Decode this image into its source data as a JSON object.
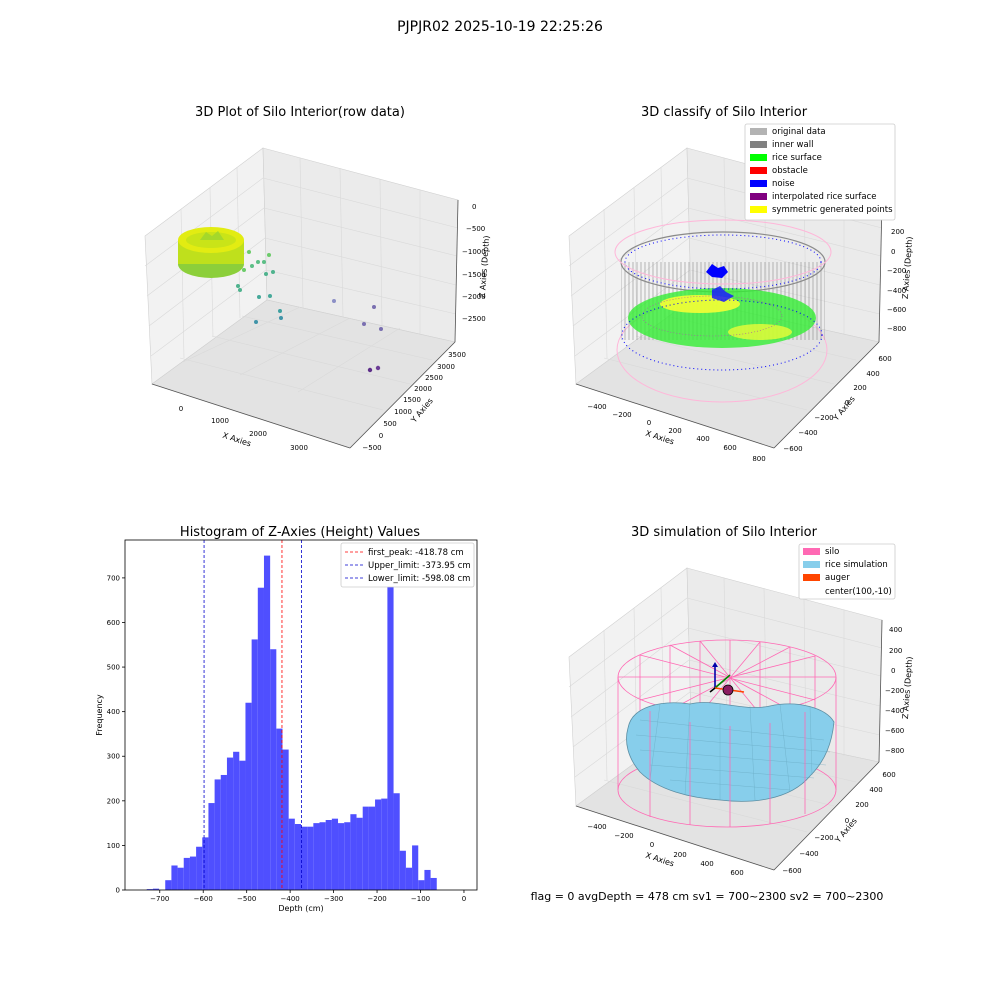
{
  "suptitle": "PJPJR02 2025-10-19 22:25:26",
  "colors": {
    "hist_bar": "#4f4fff",
    "peak_line": "#ff0000",
    "limit_line": "#0000cc",
    "pane": "#f2f2f2",
    "pane_dark": "#e6e6e6"
  },
  "panel_raw": {
    "title": "3D Plot of Silo Interior(row data)",
    "xlabel": "X Axies",
    "ylabel": "Y Axies",
    "zlabel": "Z Axies (Depth)",
    "x_ticks": [
      "0",
      "1000",
      "2000",
      "3000"
    ],
    "y_ticks": [
      "−500",
      "0",
      "500",
      "1000",
      "1500",
      "2000",
      "2500",
      "3000",
      "3500"
    ],
    "z_ticks": [
      "0",
      "−500",
      "−1000",
      "−1500",
      "−2000",
      "−2500"
    ]
  },
  "panel_classify": {
    "title": "3D classify of Silo Interior",
    "xlabel": "X Axies",
    "ylabel": "Y Axies",
    "zlabel": "Z Axies (Depth)",
    "x_ticks": [
      "−400",
      "−200",
      "0",
      "200",
      "400",
      "600",
      "800"
    ],
    "y_ticks": [
      "−600",
      "−400",
      "−200",
      "0",
      "200",
      "400",
      "600"
    ],
    "z_ticks": [
      "200",
      "0",
      "−200",
      "−400",
      "−600",
      "−800"
    ],
    "legend": [
      {
        "label": "original data",
        "color": "#b3b3b3"
      },
      {
        "label": "inner wall",
        "color": "#808080"
      },
      {
        "label": "rice surface",
        "color": "#00ff00"
      },
      {
        "label": "obstacle",
        "color": "#ff0000"
      },
      {
        "label": "noise",
        "color": "#0000ff"
      },
      {
        "label": "interpolated rice surface",
        "color": "#800080"
      },
      {
        "label": "symmetric generated points",
        "color": "#ffff00"
      }
    ]
  },
  "panel_sim": {
    "title": "3D simulation of Silo Interior",
    "xlabel": "X Axies",
    "ylabel": "Y Axies",
    "zlabel": "Z Axies (Depth)",
    "x_ticks": [
      "−400",
      "−200",
      "0",
      "200",
      "400",
      "600"
    ],
    "y_ticks": [
      "−600",
      "−400",
      "−200",
      "0",
      "200",
      "400",
      "600"
    ],
    "z_ticks": [
      "400",
      "200",
      "0",
      "−200",
      "−400",
      "−600",
      "−800"
    ],
    "legend": [
      {
        "label": "silo",
        "color": "#ff69b4"
      },
      {
        "label": "rice simulation",
        "color": "#87ceeb"
      },
      {
        "label": "auger",
        "color": "#ff4500"
      },
      {
        "label": "center(100,-10)",
        "color": ""
      }
    ]
  },
  "footer": "flag = 0     avgDepth = 478 cm  sv1 = 700~2300  sv2 = 700~2300",
  "chart_data": {
    "type": "bar",
    "title": "Histogram of Z-Axies (Height) Values",
    "xlabel": "Depth (cm)",
    "ylabel": "Frequency",
    "xlim": [
      -780,
      30
    ],
    "ylim": [
      0,
      785
    ],
    "x_ticks": [
      -700,
      -600,
      -500,
      -400,
      -300,
      -200,
      -100,
      0
    ],
    "y_ticks": [
      0,
      100,
      200,
      300,
      400,
      500,
      600,
      700
    ],
    "bin_start": -730,
    "bin_width": 14.2,
    "values": [
      2,
      3,
      0,
      22,
      55,
      50,
      72,
      75,
      97,
      118,
      195,
      248,
      258,
      297,
      310,
      290,
      420,
      562,
      678,
      750,
      540,
      362,
      315,
      160,
      148,
      142,
      142,
      150,
      152,
      157,
      160,
      150,
      152,
      170,
      162,
      187,
      187,
      203,
      205,
      738,
      217,
      88,
      50,
      100,
      22,
      45,
      27
    ],
    "vlines": [
      {
        "x": -418.78,
        "label": "first_peak: -418.78 cm",
        "color": "#ff0000"
      },
      {
        "x": -373.95,
        "label": "Upper_limit: -373.95 cm",
        "color": "#0000cc"
      },
      {
        "x": -598.08,
        "label": "Lower_limit: -598.08 cm",
        "color": "#0000cc"
      }
    ]
  }
}
